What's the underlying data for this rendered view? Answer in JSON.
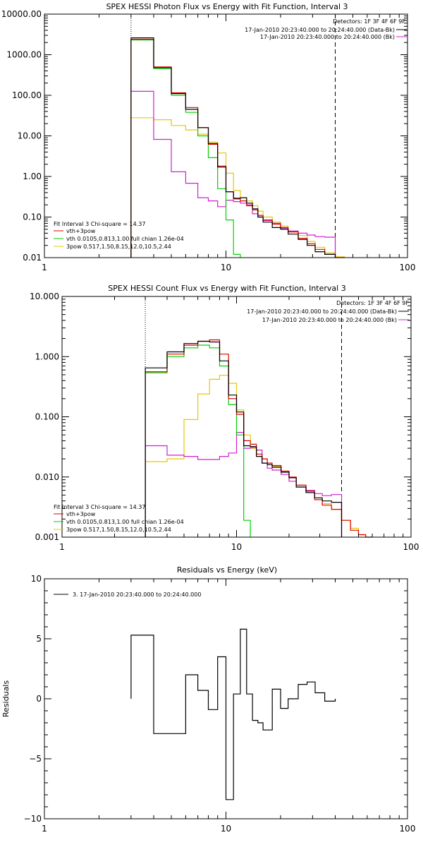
{
  "colors": {
    "black": "#000000",
    "red": "#e00000",
    "green": "#00d000",
    "yellow": "#e6c800",
    "magenta": "#d020d0"
  },
  "chart_data": [
    {
      "type": "line",
      "title": "SPEX HESSI Photon Flux vs Energy with Fit Function, Interval 3",
      "xlabel": "",
      "ylabel": "",
      "xscale": "log",
      "yscale": "log",
      "xlim": [
        1,
        100
      ],
      "ylim": [
        0.01,
        10000
      ],
      "xticks": [
        "1",
        "10",
        "100"
      ],
      "yticks": [
        "10000.00",
        "1000.00",
        "100.00",
        "10.00",
        "1.00",
        "0.10",
        "0.01"
      ],
      "ytick_values": [
        10000,
        1000,
        100,
        10,
        1,
        0.1,
        0.01
      ],
      "legend_title": "",
      "vlines": [
        {
          "x": 3.0,
          "style": "dotted"
        },
        {
          "x": 40,
          "style": "dashed"
        }
      ],
      "annotation_right": [
        "Detectors: 1F 3F 4F 6F 9F",
        "17-Jan-2010 20:23:40.000 to 20:24:40.000 (Data-Bk)",
        "17-Jan-2010 20:23:40.000 to 20:24:40.000 (Bk)"
      ],
      "annotation_right_colors": [
        "",
        "black",
        "magenta"
      ],
      "fit_legend": [
        "Fit Interval 3 Chi-square = 14.37",
        "vth+3pow",
        "vth 0.0105,0.813,1.00 full chian 1.26e-04",
        "3pow 0.517,1.50,8.15,12.0,10.5,2.44"
      ],
      "fit_legend_colors": [
        "",
        "red",
        "green",
        "yellow"
      ],
      "series": [
        {
          "color": "black",
          "edges": [
            3.0,
            4.0,
            5.0,
            6.0,
            7.0,
            8.0,
            9.0,
            10.0,
            11.0,
            12.0,
            13.0,
            14.0,
            15.0,
            16.0,
            18.0,
            20.0,
            22.0,
            25.0,
            28.0,
            31.0,
            35.0,
            40.0
          ],
          "values": [
            2600,
            480,
            110,
            45,
            16,
            6.5,
            1.7,
            0.42,
            0.29,
            0.3,
            0.22,
            0.16,
            0.1,
            0.075,
            0.055,
            0.05,
            0.038,
            0.028,
            0.02,
            0.014,
            0.012
          ]
        },
        {
          "color": "red",
          "edges": [
            3.0,
            4.0,
            5.0,
            6.0,
            7.0,
            8.0,
            9.0,
            10.0,
            11.0,
            12.0,
            13.0,
            14.0,
            15.0,
            16.0,
            18.0,
            20.0,
            22.0,
            25.0,
            28.0,
            31.0,
            35.0,
            40.0,
            45.0
          ],
          "values": [
            2400,
            500,
            115,
            50,
            16,
            6.2,
            1.8,
            0.42,
            0.28,
            0.25,
            0.19,
            0.15,
            0.11,
            0.085,
            0.067,
            0.055,
            0.043,
            0.03,
            0.022,
            0.016,
            0.012,
            0.01
          ]
        },
        {
          "color": "green",
          "edges": [
            3.0,
            4.0,
            5.0,
            6.0,
            7.0,
            8.0,
            9.0,
            10.0,
            11.0,
            12.0
          ],
          "values": [
            2300,
            450,
            100,
            38,
            10,
            2.9,
            0.5,
            0.085,
            0.012
          ]
        },
        {
          "color": "yellow",
          "edges": [
            3.0,
            4.0,
            5.0,
            6.0,
            7.0,
            8.0,
            9.0,
            10.0,
            11.0,
            12.0,
            13.0,
            14.0,
            15.0,
            16.0,
            18.0,
            20.0,
            22.0,
            25.0,
            28.0,
            31.0,
            35.0,
            40.0,
            45.0
          ],
          "values": [
            28,
            25,
            18,
            14,
            11,
            7,
            3.8,
            1.2,
            0.45,
            0.3,
            0.25,
            0.19,
            0.14,
            0.1,
            0.075,
            0.06,
            0.045,
            0.035,
            0.025,
            0.018,
            0.013,
            0.0105
          ]
        },
        {
          "color": "magenta",
          "edges": [
            3.0,
            4.0,
            5.0,
            6.0,
            7.0,
            8.0,
            9.0,
            10.0,
            11.0,
            12.0,
            13.0,
            14.0,
            15.0,
            16.0,
            18.0,
            20.0,
            22.0,
            25.0,
            28.0,
            31.0,
            35.0,
            40.0
          ],
          "values": [
            125,
            8.2,
            1.3,
            0.68,
            0.3,
            0.25,
            0.18,
            0.26,
            0.24,
            0.22,
            0.2,
            0.12,
            0.1,
            0.082,
            0.07,
            0.052,
            0.045,
            0.04,
            0.036,
            0.033,
            0.032
          ]
        }
      ]
    },
    {
      "type": "line",
      "title": "SPEX HESSI Count Flux vs Energy with Fit Function, Interval 3",
      "xlabel": "",
      "ylabel": "",
      "xscale": "log",
      "yscale": "log",
      "xlim": [
        1,
        100
      ],
      "ylim": [
        0.001,
        10
      ],
      "xticks": [
        "1",
        "10",
        "100"
      ],
      "yticks": [
        "10.000",
        "1.000",
        "0.100",
        "0.010",
        "0.001"
      ],
      "ytick_values": [
        10,
        1,
        0.1,
        0.01,
        0.001
      ],
      "vlines": [
        {
          "x": 3.0,
          "style": "dotted"
        },
        {
          "x": 40,
          "style": "dashed"
        }
      ],
      "annotation_right": [
        "Detectors: 1F 3F 4F 6F 9F",
        "17-Jan-2010 20:23:40.000 to 20:24:40.000 (Data-Bk)",
        "17-Jan-2010 20:23:40.000 to 20:24:40.000 (Bk)"
      ],
      "annotation_right_colors": [
        "",
        "black",
        "magenta"
      ],
      "fit_legend": [
        "Fit Interval 3 Chi-square = 14.37",
        "vth+3pow",
        "vth 0.0105,0.813,1.00 full chian 1.26e-04",
        "3pow 0.517,1.50,8.15,12.0,10.5,2.44"
      ],
      "fit_legend_colors": [
        "",
        "red",
        "green",
        "yellow"
      ],
      "series": [
        {
          "color": "black",
          "edges": [
            3.0,
            4.0,
            5.0,
            6.0,
            7.0,
            8.0,
            9.0,
            10.0,
            11.0,
            12.0,
            13.0,
            14.0,
            15.0,
            16.0,
            18.0,
            20.0,
            22.0,
            25.0,
            28.0,
            31.0,
            35.0,
            40.0
          ],
          "values": [
            0.65,
            1.2,
            1.65,
            1.8,
            1.75,
            0.85,
            0.23,
            0.12,
            0.033,
            0.032,
            0.022,
            0.017,
            0.016,
            0.0145,
            0.012,
            0.0097,
            0.0068,
            0.0055,
            0.0045,
            0.004,
            0.0038
          ]
        },
        {
          "color": "red",
          "edges": [
            3.0,
            4.0,
            5.0,
            6.0,
            7.0,
            8.0,
            9.0,
            10.0,
            11.0,
            12.0,
            13.0,
            14.0,
            15.0,
            16.0,
            18.0,
            20.0,
            22.0,
            25.0,
            28.0,
            31.0,
            35.0,
            40.0,
            45.0,
            50.0,
            55.0,
            60.0
          ],
          "values": [
            0.56,
            1.1,
            1.55,
            1.8,
            1.9,
            1.1,
            0.2,
            0.11,
            0.04,
            0.035,
            0.024,
            0.02,
            0.017,
            0.0155,
            0.0125,
            0.01,
            0.0073,
            0.0058,
            0.0042,
            0.0034,
            0.0029,
            0.0019,
            0.0013,
            0.0011,
            0.001
          ]
        },
        {
          "color": "green",
          "edges": [
            3.0,
            4.0,
            5.0,
            6.0,
            7.0,
            8.0,
            9.0,
            10.0,
            11.0,
            12.0
          ],
          "values": [
            0.54,
            1.0,
            1.4,
            1.55,
            1.4,
            0.7,
            0.16,
            0.05,
            0.0019
          ]
        },
        {
          "color": "yellow",
          "edges": [
            3.0,
            4.0,
            5.0,
            6.0,
            7.0,
            8.0,
            9.0,
            10.0,
            11.0,
            12.0,
            13.0,
            14.0,
            15.0,
            16.0,
            18.0,
            20.0,
            22.0,
            25.0,
            28.0,
            31.0,
            35.0,
            40.0,
            45.0,
            50.0,
            55.0,
            60.0
          ],
          "values": [
            0.018,
            0.02,
            0.09,
            0.24,
            0.42,
            0.49,
            0.36,
            0.13,
            0.05,
            0.03,
            0.022,
            0.02,
            0.017,
            0.015,
            0.0125,
            0.0097,
            0.0073,
            0.0058,
            0.0045,
            0.0036,
            0.0029,
            0.0019,
            0.0014,
            0.0011,
            0.001
          ]
        },
        {
          "color": "magenta",
          "edges": [
            3.0,
            4.0,
            5.0,
            6.0,
            7.0,
            8.0,
            9.0,
            10.0,
            11.0,
            12.0,
            13.0,
            14.0,
            15.0,
            16.0,
            18.0,
            20.0,
            22.0,
            25.0,
            28.0,
            31.0,
            35.0,
            40.0
          ],
          "values": [
            0.033,
            0.023,
            0.022,
            0.0195,
            0.0195,
            0.022,
            0.025,
            0.055,
            0.03,
            0.031,
            0.028,
            0.017,
            0.014,
            0.013,
            0.011,
            0.0085,
            0.0068,
            0.006,
            0.0053,
            0.0049,
            0.0051
          ]
        }
      ]
    },
    {
      "type": "line",
      "title": "Residuals vs Energy (keV)",
      "xlabel": "",
      "ylabel": "Residuals",
      "xscale": "log",
      "yscale": "linear",
      "xlim": [
        1,
        100
      ],
      "ylim": [
        -10,
        10
      ],
      "xticks": [
        "1",
        "10",
        "100"
      ],
      "yticks": [
        "10",
        "5",
        "0",
        "−5",
        "−10"
      ],
      "ytick_values": [
        10,
        5,
        0,
        -5,
        -10
      ],
      "legend": [
        "3. 17-Jan-2010 20:23:40.000 to 20:24:40.000"
      ],
      "series": [
        {
          "color": "black",
          "edges": [
            3.0,
            4.0,
            5.0,
            6.0,
            7.0,
            8.0,
            9.0,
            10.0,
            11.0,
            12.0,
            13.0,
            14.0,
            15.0,
            16.0,
            18.0,
            20.0,
            22.0,
            25.0,
            28.0,
            31.0,
            35.0,
            40.0
          ],
          "values": [
            5.3,
            -2.9,
            -2.9,
            2.0,
            0.7,
            -0.9,
            3.5,
            -8.4,
            0.4,
            5.8,
            0.4,
            -1.8,
            -2.0,
            -2.6,
            0.8,
            -0.8,
            0.0,
            1.2,
            1.4,
            0.5,
            -0.2
          ]
        }
      ]
    }
  ]
}
